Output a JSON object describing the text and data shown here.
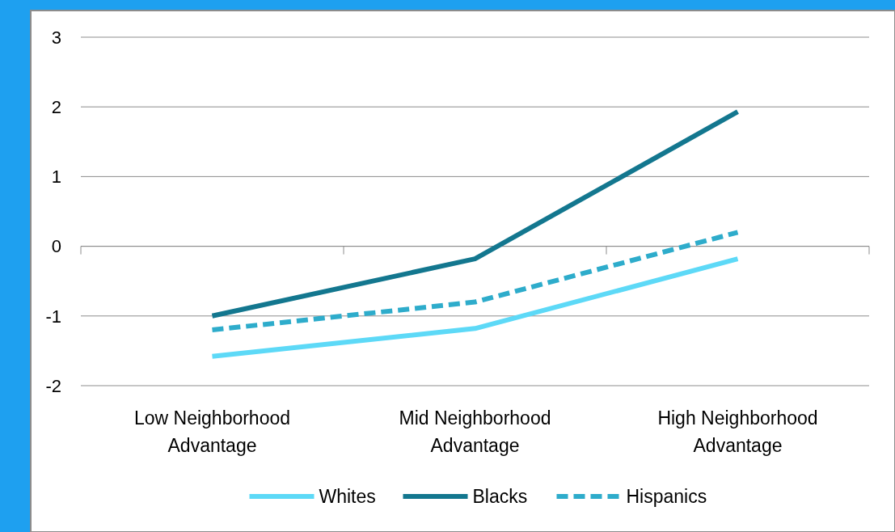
{
  "chart_data": {
    "type": "line",
    "categories": [
      "Low Neighborhood Advantage",
      "Mid Neighborhood Advantage",
      "High Neighborhood Advantage"
    ],
    "series": [
      {
        "name": "Whites",
        "color": "#5dd9f7",
        "values": [
          -1.58,
          -1.18,
          -0.18
        ],
        "line_style": "solid"
      },
      {
        "name": "Blacks",
        "color": "#13778f",
        "values": [
          -1.0,
          -0.18,
          1.93
        ],
        "line_style": "solid"
      },
      {
        "name": "Hispanics",
        "color": "#2eaccb",
        "values": [
          -1.2,
          -0.8,
          0.2
        ],
        "line_style": "dashed"
      }
    ],
    "ylim": [
      -2,
      3
    ],
    "yticks": [
      -2,
      -1,
      0,
      1,
      2,
      3
    ],
    "grid": "y",
    "legend": "bottom",
    "marker": "none"
  }
}
